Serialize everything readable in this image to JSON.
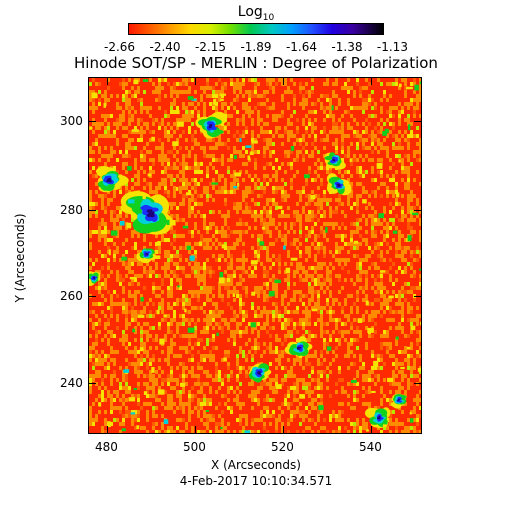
{
  "colorbar": {
    "title": "Log",
    "title_sub": "10",
    "ticks": [
      "-2.66",
      "-2.40",
      "-2.15",
      "-1.89",
      "-1.64",
      "-1.38",
      "-1.13"
    ]
  },
  "title": "Hinode SOT/SP - MERLIN : Degree of Polarization",
  "axes": {
    "ylabel": "Y (Arcseconds)",
    "xlabel": "X (Arcseconds)",
    "yticks": [
      "300",
      "280",
      "260",
      "240"
    ],
    "xticks": [
      "480",
      "500",
      "520",
      "540"
    ]
  },
  "timestamp": "4-Feb-2017 10:10:34.571",
  "colors": {
    "background_red": "#ff2a00",
    "orange": "#ff8c00",
    "yellow": "#f4e400",
    "green": "#10d020",
    "cyan": "#00d0d8",
    "blue": "#1a30ff",
    "dark": "#20007a"
  }
}
